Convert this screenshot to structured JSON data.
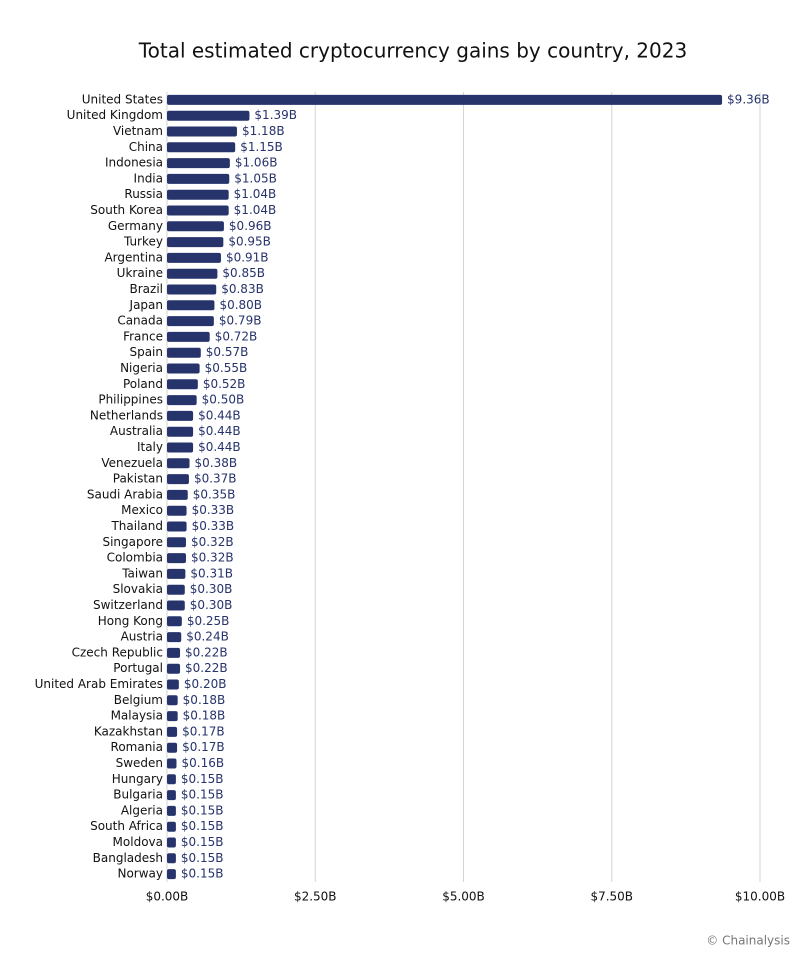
{
  "chart_data": {
    "type": "barh",
    "title": "Total estimated cryptocurrency gains by country, 2023",
    "source": "© Chainalysis",
    "categories": [
      "United States",
      "United Kingdom",
      "Vietnam",
      "China",
      "Indonesia",
      "India",
      "Russia",
      "South Korea",
      "Germany",
      "Turkey",
      "Argentina",
      "Ukraine",
      "Brazil",
      "Japan",
      "Canada",
      "France",
      "Spain",
      "Nigeria",
      "Poland",
      "Philippines",
      "Netherlands",
      "Australia",
      "Italy",
      "Venezuela",
      "Pakistan",
      "Saudi Arabia",
      "Mexico",
      "Thailand",
      "Singapore",
      "Colombia",
      "Taiwan",
      "Slovakia",
      "Switzerland",
      "Hong Kong",
      "Austria",
      "Czech Republic",
      "Portugal",
      "United Arab Emirates",
      "Belgium",
      "Malaysia",
      "Kazakhstan",
      "Romania",
      "Sweden",
      "Hungary",
      "Bulgaria",
      "Algeria",
      "South Africa",
      "Moldova",
      "Bangladesh",
      "Norway"
    ],
    "values": [
      9.36,
      1.39,
      1.18,
      1.15,
      1.06,
      1.05,
      1.04,
      1.04,
      0.96,
      0.95,
      0.91,
      0.85,
      0.83,
      0.8,
      0.79,
      0.72,
      0.57,
      0.55,
      0.52,
      0.5,
      0.44,
      0.44,
      0.44,
      0.38,
      0.37,
      0.35,
      0.33,
      0.33,
      0.32,
      0.32,
      0.31,
      0.3,
      0.3,
      0.25,
      0.24,
      0.22,
      0.22,
      0.2,
      0.18,
      0.18,
      0.17,
      0.17,
      0.16,
      0.15,
      0.15,
      0.15,
      0.15,
      0.15,
      0.15,
      0.15
    ],
    "value_labels": [
      "$9.36B",
      "$1.39B",
      "$1.18B",
      "$1.15B",
      "$1.06B",
      "$1.05B",
      "$1.04B",
      "$1.04B",
      "$0.96B",
      "$0.95B",
      "$0.91B",
      "$0.85B",
      "$0.83B",
      "$0.80B",
      "$0.79B",
      "$0.72B",
      "$0.57B",
      "$0.55B",
      "$0.52B",
      "$0.50B",
      "$0.44B",
      "$0.44B",
      "$0.44B",
      "$0.38B",
      "$0.37B",
      "$0.35B",
      "$0.33B",
      "$0.33B",
      "$0.32B",
      "$0.32B",
      "$0.31B",
      "$0.30B",
      "$0.30B",
      "$0.25B",
      "$0.24B",
      "$0.22B",
      "$0.22B",
      "$0.20B",
      "$0.18B",
      "$0.18B",
      "$0.17B",
      "$0.17B",
      "$0.16B",
      "$0.15B",
      "$0.15B",
      "$0.15B",
      "$0.15B",
      "$0.15B",
      "$0.15B",
      "$0.15B"
    ],
    "color": "#27336b",
    "xlim": [
      0,
      10
    ],
    "xticks": [
      {
        "value": 0,
        "label": "$0.00B"
      },
      {
        "value": 2.5,
        "label": "$2.50B"
      },
      {
        "value": 5,
        "label": "$5.00B"
      },
      {
        "value": 7.5,
        "label": "$7.50B"
      },
      {
        "value": 10,
        "label": "$10.00B"
      }
    ],
    "grid": true
  }
}
